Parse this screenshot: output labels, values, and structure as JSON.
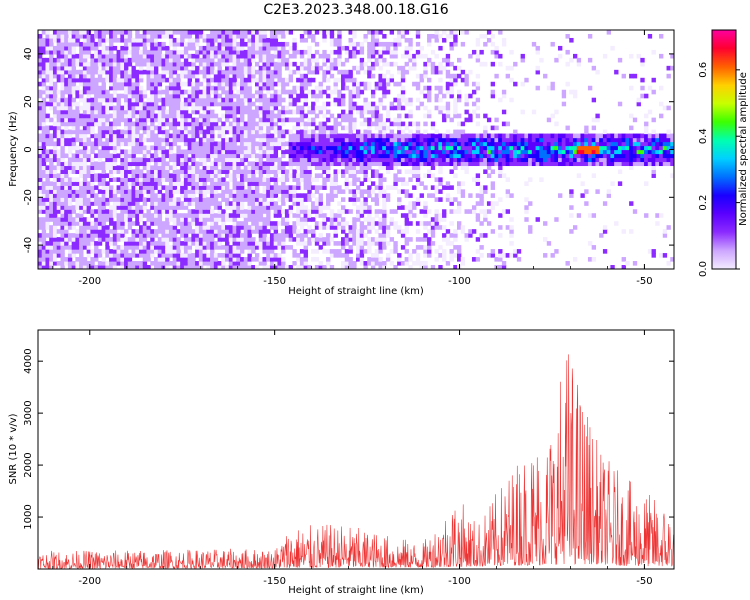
{
  "title": "C2E3.2023.348.00.18.G16",
  "chart_data": [
    {
      "type": "heatmap",
      "xlabel": "Height of straight line (km)",
      "ylabel": "Frequency (Hz)",
      "xlim": [
        -214,
        -42
      ],
      "ylim": [
        -50,
        50
      ],
      "xticks": [
        -200,
        -150,
        -100,
        -50
      ],
      "yticks": [
        -40,
        -20,
        0,
        20,
        40
      ],
      "colorbar": {
        "label": "Normalized spectral amplitude",
        "range": [
          0.0,
          0.72
        ],
        "ticks": [
          0.0,
          0.2,
          0.4,
          0.6
        ],
        "colors": [
          "#f4ecff",
          "#cda6ff",
          "#8c2bff",
          "#5a00ff",
          "#1a00ff",
          "#0070ff",
          "#00d0ff",
          "#00ffb0",
          "#3cff00",
          "#c8ff00",
          "#ffd000",
          "#ff6000",
          "#ff0030",
          "#ff00a0"
        ]
      },
      "features": [
        {
          "name": "",
          "x_range": [
            -146,
            -42
          ],
          "frequency_center_hz": 0,
          "frequency_halfwidth_hz": 6,
          "peak_amplitude": 0.68,
          "peak_x": -65
        }
      ]
    },
    {
      "type": "line",
      "xlabel": "Height of straight line (km)",
      "ylabel": "SNR (10 * v/v)",
      "xlim": [
        -214,
        -42
      ],
      "ylim": [
        0,
        4600
      ],
      "xticks": [
        -200,
        -150,
        -100,
        -50
      ],
      "yticks": [
        1000,
        2000,
        3000,
        4000
      ],
      "color": "#ee3333",
      "envelope": [
        {
          "x": -214,
          "base": 60,
          "max": 350
        },
        {
          "x": -150,
          "base": 80,
          "max": 400
        },
        {
          "x": -146,
          "base": 100,
          "max": 820
        },
        {
          "x": -132,
          "base": 150,
          "max": 880
        },
        {
          "x": -110,
          "base": 140,
          "max": 500
        },
        {
          "x": -101,
          "base": 200,
          "max": 1450
        },
        {
          "x": -95,
          "base": 250,
          "max": 900
        },
        {
          "x": -84,
          "base": 350,
          "max": 2200
        },
        {
          "x": -75,
          "base": 400,
          "max": 2850
        },
        {
          "x": -71,
          "base": 500,
          "max": 4550
        },
        {
          "x": -62,
          "base": 450,
          "max": 2300
        },
        {
          "x": -55,
          "base": 300,
          "max": 1750
        },
        {
          "x": -42,
          "base": 250,
          "max": 1150
        }
      ]
    }
  ]
}
